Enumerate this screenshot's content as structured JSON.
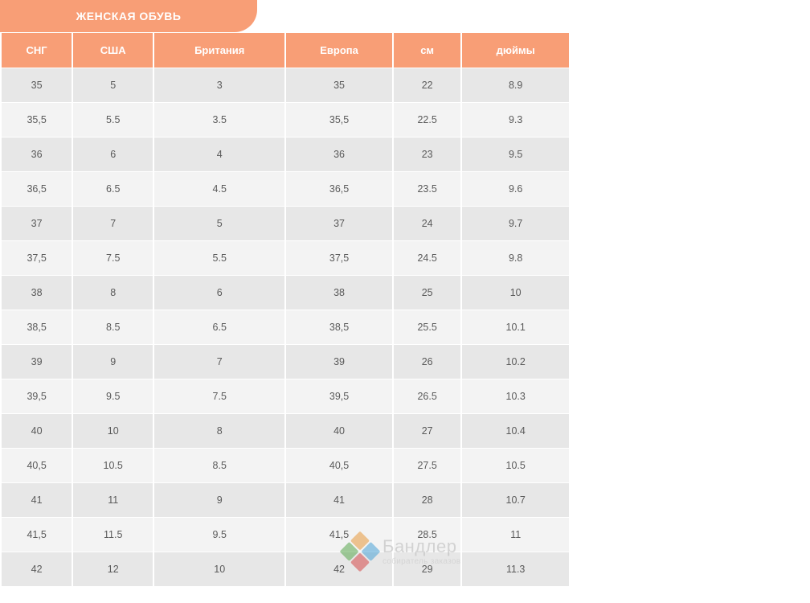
{
  "title": "ЖЕНСКАЯ ОБУВЬ",
  "table": {
    "columns": [
      "СНГ",
      "США",
      "Британия",
      "Европа",
      "см",
      "дюймы"
    ],
    "rows": [
      [
        "35",
        "5",
        "3",
        "35",
        "22",
        "8.9"
      ],
      [
        "35,5",
        "5.5",
        "3.5",
        "35,5",
        "22.5",
        "9.3"
      ],
      [
        "36",
        "6",
        "4",
        "36",
        "23",
        "9.5"
      ],
      [
        "36,5",
        "6.5",
        "4.5",
        "36,5",
        "23.5",
        "9.6"
      ],
      [
        "37",
        "7",
        "5",
        "37",
        "24",
        "9.7"
      ],
      [
        "37,5",
        "7.5",
        "5.5",
        "37,5",
        "24.5",
        "9.8"
      ],
      [
        "38",
        "8",
        "6",
        "38",
        "25",
        "10"
      ],
      [
        "38,5",
        "8.5",
        "6.5",
        "38,5",
        "25.5",
        "10.1"
      ],
      [
        "39",
        "9",
        "7",
        "39",
        "26",
        "10.2"
      ],
      [
        "39,5",
        "9.5",
        "7.5",
        "39,5",
        "26.5",
        "10.3"
      ],
      [
        "40",
        "10",
        "8",
        "40",
        "27",
        "10.4"
      ],
      [
        "40,5",
        "10.5",
        "8.5",
        "40,5",
        "27.5",
        "10.5"
      ],
      [
        "41",
        "11",
        "9",
        "41",
        "28",
        "10.7"
      ],
      [
        "41,5",
        "11.5",
        "9.5",
        "41,5",
        "28.5",
        "11"
      ],
      [
        "42",
        "12",
        "10",
        "42",
        "29",
        "11.3"
      ]
    ],
    "header_bg": "#f89e76",
    "header_fg": "#ffffff",
    "title_bg": "#f89e76",
    "cell_bg_odd": "#e7e7e7",
    "cell_bg_even": "#f3f3f3",
    "cell_fg": "#5a5a5a",
    "col_count": 6
  },
  "watermark": {
    "brand": "Бандлер",
    "tagline": "собиратель заказов"
  }
}
